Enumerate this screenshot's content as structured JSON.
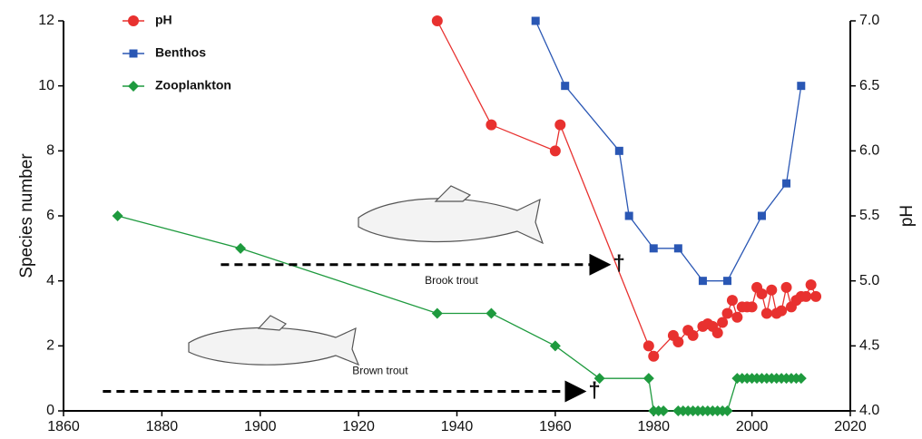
{
  "chart_data": {
    "type": "line",
    "xlim": [
      1860,
      2020
    ],
    "xticks": [
      1860,
      1880,
      1900,
      1920,
      1940,
      1960,
      1980,
      2000,
      2020
    ],
    "ylim": [
      0,
      12
    ],
    "yticks": [
      0,
      2,
      4,
      6,
      8,
      10,
      12
    ],
    "y2lim": [
      4.0,
      7.0
    ],
    "y2ticks": [
      {
        "value": 4,
        "label": "4.0"
      },
      4.5,
      {
        "value": 5,
        "label": "5.0"
      },
      5.5,
      {
        "value": 6,
        "label": "6.0"
      },
      6.5,
      {
        "value": 7,
        "label": "7.0"
      }
    ],
    "ylabel": "Species number",
    "y2label": "pH",
    "legend": "top-left",
    "series": [
      {
        "name": "pH",
        "color": "#e8312f",
        "marker": "circle",
        "axis": "y2",
        "x": [
          1936,
          1947,
          1960,
          1961,
          1979,
          1980,
          1984,
          1985,
          1987,
          1988,
          1990,
          1991,
          1992,
          1993,
          1994,
          1995,
          1996,
          1997,
          1998,
          1999,
          2000,
          2001,
          2002,
          2003,
          2004,
          2005,
          2006,
          2007,
          2008,
          2009,
          2010,
          2011,
          2012,
          2013
        ],
        "values": [
          7.0,
          6.2,
          6.0,
          6.2,
          4.5,
          4.42,
          4.58,
          4.53,
          4.62,
          4.58,
          4.65,
          4.67,
          4.65,
          4.6,
          4.68,
          4.75,
          4.85,
          4.72,
          4.8,
          4.8,
          4.8,
          4.95,
          4.9,
          4.75,
          4.93,
          4.75,
          4.77,
          4.95,
          4.8,
          4.85,
          4.88,
          4.88,
          4.97,
          4.88
        ]
      },
      {
        "name": "Benthos",
        "color": "#2a57b4",
        "marker": "square",
        "x": [
          1956,
          1962,
          1973,
          1975,
          1980,
          1985,
          1990,
          1995,
          2002,
          2007,
          2010
        ],
        "values": [
          12,
          10,
          8,
          6,
          5,
          5,
          4,
          4,
          6,
          7,
          10
        ]
      },
      {
        "name": "Zooplankton",
        "color": "#1e9a3e",
        "marker": "diamond",
        "x": [
          1871,
          1896,
          1936,
          1947,
          1960,
          1969,
          1979,
          1980,
          1981,
          1982,
          1985,
          1986,
          1987,
          1988,
          1989,
          1990,
          1991,
          1992,
          1993,
          1994,
          1995,
          1997,
          1998,
          1999,
          2000,
          2001,
          2002,
          2003,
          2004,
          2005,
          2006,
          2007,
          2008,
          2009,
          2010
        ],
        "values": [
          6,
          5,
          3,
          3,
          2,
          1,
          1,
          0,
          0,
          0,
          0,
          0,
          0,
          0,
          0,
          0,
          0,
          0,
          0,
          0,
          0,
          1,
          1,
          1,
          1,
          1,
          1,
          1,
          1,
          1,
          1,
          1,
          1,
          1,
          1
        ]
      }
    ],
    "annotations": [
      {
        "text": "Brook trout",
        "marker": "†",
        "from": 1892,
        "to": 1971
      },
      {
        "text": "Brown trout",
        "marker": "†",
        "from": 1868,
        "to": 1966
      }
    ]
  }
}
